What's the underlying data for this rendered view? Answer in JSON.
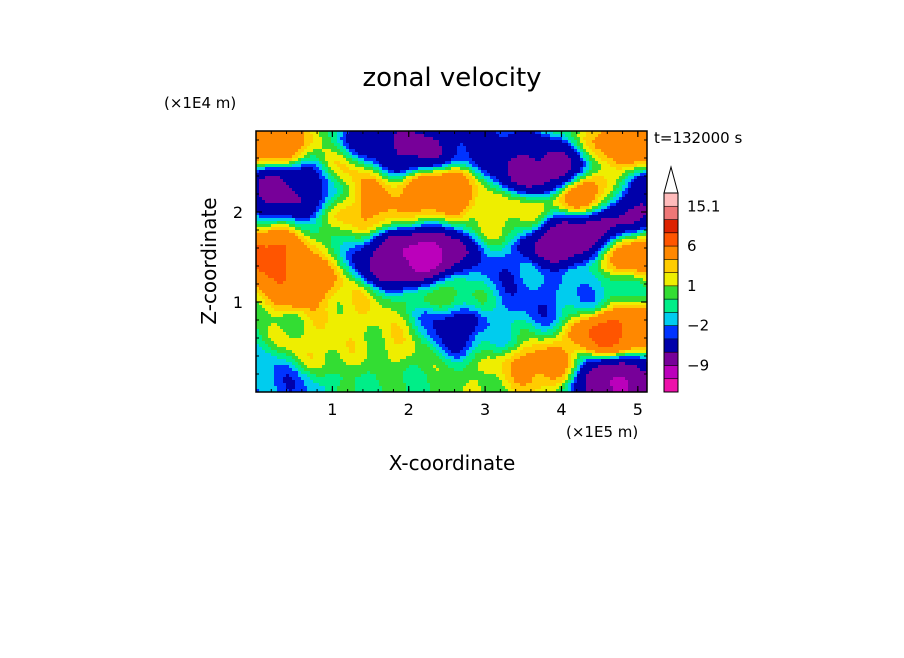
{
  "chart_data": {
    "type": "heatmap",
    "title": "zonal velocity",
    "xlabel": "X-coordinate",
    "ylabel": "Z-coordinate",
    "x_unit": "(×1E5 m)",
    "y_unit": "(×1E4 m)",
    "time_label": "t=132000 s",
    "xlim": [
      0,
      5.12
    ],
    "ylim": [
      0,
      2.9
    ],
    "x_ticks": [
      1,
      2,
      3,
      4,
      5
    ],
    "y_ticks": [
      1,
      2
    ],
    "colorbar": {
      "levels": [
        -15,
        -12,
        -9,
        -6,
        -3,
        -2,
        -1,
        0,
        1,
        2,
        3,
        6,
        9,
        12,
        15.1
      ],
      "labels": [
        {
          "value": 15.1,
          "text": "15.1"
        },
        {
          "value": 6,
          "text": "6"
        },
        {
          "value": 1,
          "text": "1"
        },
        {
          "value": -2,
          "text": "−2"
        },
        {
          "value": -9,
          "text": "−9"
        }
      ],
      "colors": [
        "#ee11aa",
        "#bb00bb",
        "#770099",
        "#0000aa",
        "#0033ff",
        "#00ccee",
        "#00ee88",
        "#33dd33",
        "#eeee00",
        "#ffcc00",
        "#ff8800",
        "#ff5500",
        "#dd2200",
        "#ee7777",
        "#ffbbbb"
      ],
      "extend_max": true
    },
    "field_features": [
      {
        "x": 2.9,
        "z": 2.8,
        "u": -4
      },
      {
        "x": 3.4,
        "z": 2.6,
        "u": -6
      },
      {
        "x": 3.75,
        "z": 2.45,
        "u": -9
      },
      {
        "x": 4.0,
        "z": 1.7,
        "u": -10
      },
      {
        "x": 4.6,
        "z": 1.85,
        "u": -10
      },
      {
        "x": 5.05,
        "z": 2.1,
        "u": -7
      },
      {
        "x": 0.35,
        "z": 2.25,
        "u": -8
      },
      {
        "x": 0.8,
        "z": 2.3,
        "u": -5
      },
      {
        "x": 1.55,
        "z": 2.65,
        "u": -6
      },
      {
        "x": 2.1,
        "z": 2.7,
        "u": -8
      },
      {
        "x": 2.25,
        "z": 1.5,
        "u": -12
      },
      {
        "x": 1.9,
        "z": 1.45,
        "u": -9
      },
      {
        "x": 3.15,
        "z": 1.3,
        "u": -3
      },
      {
        "x": 2.55,
        "z": 0.7,
        "u": -6
      },
      {
        "x": 3.65,
        "z": 1.0,
        "u": -3
      },
      {
        "x": 4.3,
        "z": 1.05,
        "u": -2
      },
      {
        "x": 4.75,
        "z": 0.1,
        "u": -10
      },
      {
        "x": 3.2,
        "z": 0.6,
        "u": -1
      },
      {
        "x": 0.1,
        "z": 0.2,
        "u": -2
      },
      {
        "x": 0.3,
        "z": 0.05,
        "u": -3
      },
      {
        "x": 1.45,
        "z": 2.1,
        "u": 4
      },
      {
        "x": 2.4,
        "z": 2.25,
        "u": 6
      },
      {
        "x": 1.25,
        "z": 2.45,
        "u": 5
      },
      {
        "x": 0.2,
        "z": 2.75,
        "u": 5
      },
      {
        "x": 4.35,
        "z": 2.15,
        "u": 6
      },
      {
        "x": 4.95,
        "z": 1.6,
        "u": 6
      },
      {
        "x": 0.1,
        "z": 1.5,
        "u": 8
      },
      {
        "x": 0.55,
        "z": 1.2,
        "u": 6
      },
      {
        "x": 4.65,
        "z": 0.7,
        "u": 8
      },
      {
        "x": 3.6,
        "z": 0.3,
        "u": 5
      },
      {
        "x": 4.95,
        "z": 2.8,
        "u": 6
      },
      {
        "x": 3.1,
        "z": 0.15,
        "u": 1
      },
      {
        "x": 1.2,
        "z": 0.9,
        "u": 2
      },
      {
        "x": 2.0,
        "z": 0.6,
        "u": 2
      },
      {
        "x": 0.8,
        "z": 0.5,
        "u": 2
      },
      {
        "x": 3.45,
        "z": 1.95,
        "u": 2
      },
      {
        "x": 2.6,
        "z": 1.1,
        "u": 1
      }
    ]
  }
}
